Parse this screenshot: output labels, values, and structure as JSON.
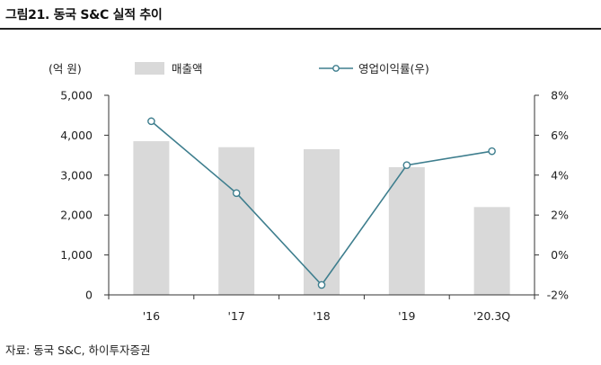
{
  "figure": {
    "title": "그림21. 동국 S&C 실적 추이",
    "source": "자료: 동국 S&C, 하이투자증권"
  },
  "chart_data": {
    "type": "bar",
    "categories": [
      "'16",
      "'17",
      "'18",
      "'19",
      "'20.3Q"
    ],
    "series": [
      {
        "name": "매출액",
        "type": "bar",
        "axis": "left",
        "values": [
          3850,
          3700,
          3650,
          3200,
          2200
        ],
        "color": "#d9d9d9"
      },
      {
        "name": "영업이익률(우)",
        "type": "line",
        "axis": "right",
        "values": [
          6.7,
          3.1,
          -1.5,
          4.5,
          5.2
        ],
        "color": "#3e7e8e"
      }
    ],
    "y_left": {
      "unit_label": "(억 원)",
      "ylim": [
        0,
        5000
      ],
      "ticks": [
        0,
        1000,
        2000,
        3000,
        4000,
        5000
      ],
      "tick_labels": [
        "0",
        "1,000",
        "2,000",
        "3,000",
        "4,000",
        "5,000"
      ]
    },
    "y_right": {
      "ylim": [
        -2,
        8
      ],
      "ticks": [
        -2,
        0,
        2,
        4,
        6,
        8
      ],
      "tick_labels": [
        "-2%",
        "0%",
        "2%",
        "4%",
        "6%",
        "8%"
      ]
    },
    "grid": false,
    "legend_position": "top"
  }
}
